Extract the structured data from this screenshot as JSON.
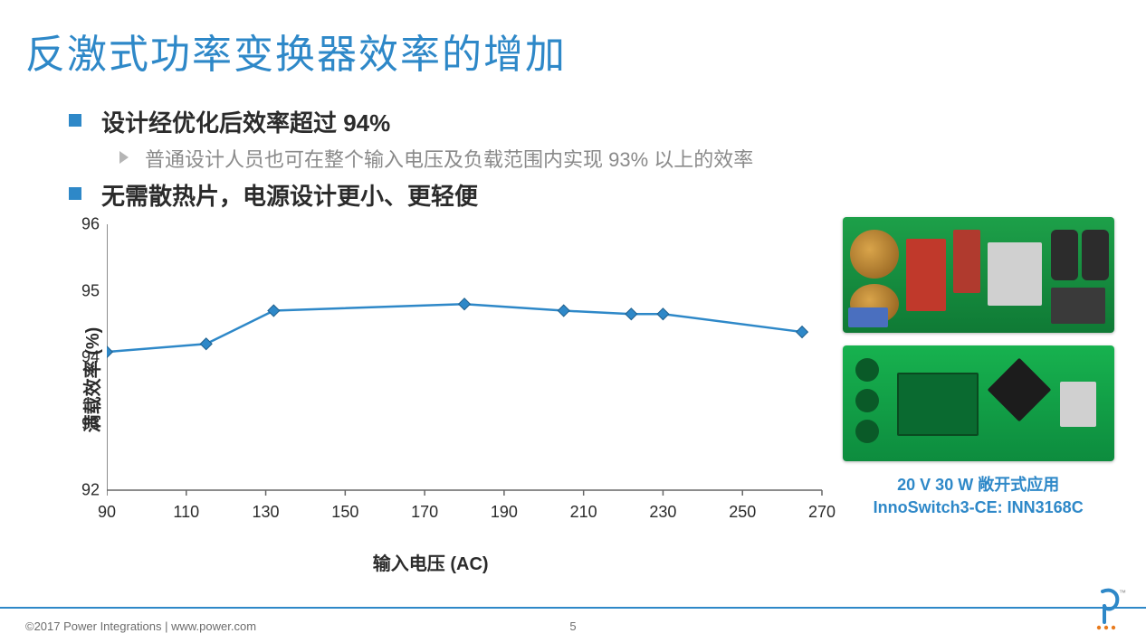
{
  "title": "反激式功率变换器效率的增加",
  "bullets": {
    "b1": "设计经优化后效率超过 94%",
    "b1_sub": "普通设计人员也可在整个输入电压及负载范围内实现 93% 以上的效率",
    "b2": "无需散热片，电源设计更小、更轻便"
  },
  "chart": {
    "type": "line",
    "ylabel": "满载效率 (%)",
    "xlabel": "输入电压 (AC)",
    "xlim": [
      90,
      270
    ],
    "ylim": [
      92,
      96
    ],
    "xtick_step": 20,
    "ytick_step": 1,
    "xticks": [
      90,
      110,
      130,
      150,
      170,
      190,
      210,
      230,
      250,
      270
    ],
    "yticks": [
      92,
      93,
      94,
      95,
      96
    ],
    "x": [
      90,
      115,
      132,
      180,
      205,
      222,
      230,
      265
    ],
    "y": [
      94.08,
      94.2,
      94.7,
      94.8,
      94.7,
      94.65,
      94.65,
      94.38
    ],
    "line_color": "#2e88c8",
    "line_width": 2.5,
    "marker": "diamond",
    "marker_size": 9,
    "marker_fill": "#2e88c8",
    "marker_stroke": "#1f5f8c",
    "axis_color": "#666666",
    "tick_color": "#666666",
    "tick_len": 6,
    "background_color": "#ffffff",
    "label_fontsize": 20,
    "tick_fontsize": 18,
    "grid": false
  },
  "right": {
    "caption_line1": "20 V 30 W 敞开式应用",
    "caption_line2": "InnoSwitch3-CE: INN3168C"
  },
  "footer": {
    "copyright": "©2017 Power Integrations  |  www.power.com",
    "page": "5"
  }
}
